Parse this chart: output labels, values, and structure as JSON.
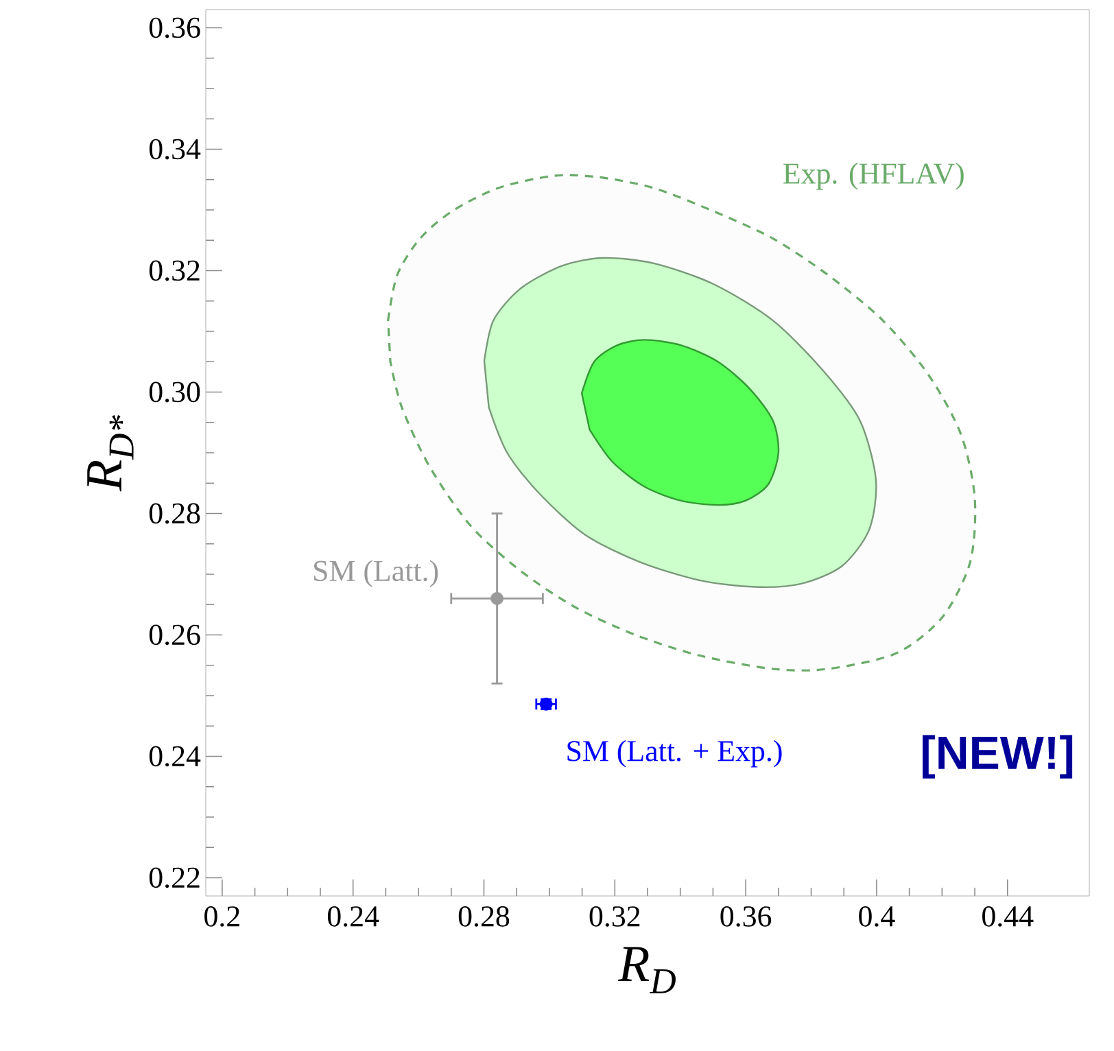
{
  "chart_data": {
    "type": "scatter",
    "xlabel": "R$_{D}$",
    "ylabel": "R$_{D*}$",
    "xlim": [
      0.195,
      0.465
    ],
    "ylim": [
      0.217,
      0.363
    ],
    "xticks": [
      0.2,
      0.24,
      0.28,
      0.32,
      0.36,
      0.4,
      0.44
    ],
    "yticks": [
      0.22,
      0.24,
      0.26,
      0.28,
      {
        "value": 0.3,
        "label": "0.30"
      },
      0.32,
      0.34,
      0.36
    ],
    "grid": false,
    "annotations": [
      "[NEW!]"
    ],
    "series": [
      {
        "name": "Exp. (HFLAV)",
        "type": "area",
        "line_style": "dashed",
        "marker": "none",
        "color": "#6aab6a",
        "x": [
          0.2507,
          0.2535,
          0.2605,
          0.2703,
          0.2843,
          0.3011,
          0.3151,
          0.3319,
          0.3501,
          0.3683,
          0.3851,
          0.4019,
          0.4159,
          0.4258,
          0.43,
          0.4286,
          0.4202,
          0.4061,
          0.3851,
          0.3683,
          0.3459,
          0.3263,
          0.3081,
          0.2913,
          0.2759,
          0.2633,
          0.2549,
          0.2514
        ],
        "values": [
          0.3118,
          0.3193,
          0.3253,
          0.3298,
          0.3336,
          0.3356,
          0.3354,
          0.3336,
          0.3298,
          0.3253,
          0.3193,
          0.3118,
          0.3028,
          0.293,
          0.2825,
          0.272,
          0.263,
          0.257,
          0.2544,
          0.2544,
          0.2566,
          0.26,
          0.2645,
          0.2705,
          0.278,
          0.2878,
          0.2975,
          0.305
        ]
      },
      {
        "type": "area",
        "marker": "none",
        "color": "#ccffcc",
        "x": [
          0.2801,
          0.2829,
          0.2913,
          0.3039,
          0.3165,
          0.3319,
          0.3501,
          0.3683,
          0.3837,
          0.3949,
          0.3998,
          0.3977,
          0.3893,
          0.3767,
          0.3627,
          0.3459,
          0.3277,
          0.3109,
          0.2969,
          0.2871,
          0.2815
        ],
        "values": [
          0.3051,
          0.3118,
          0.3171,
          0.3208,
          0.3221,
          0.3212,
          0.3178,
          0.3118,
          0.3035,
          0.2953,
          0.2855,
          0.2773,
          0.2713,
          0.2684,
          0.2679,
          0.269,
          0.272,
          0.2765,
          0.2833,
          0.29,
          0.2975
        ]
      },
      {
        "type": "area",
        "marker": "none",
        "color": "#55ff55",
        "x": [
          0.3099,
          0.3137,
          0.3207,
          0.3291,
          0.3403,
          0.3515,
          0.3613,
          0.3683,
          0.37,
          0.3669,
          0.3599,
          0.3515,
          0.3403,
          0.3291,
          0.3193,
          0.3123
        ],
        "values": [
          0.2998,
          0.305,
          0.3077,
          0.3086,
          0.3077,
          0.305,
          0.3005,
          0.2953,
          0.29,
          0.2848,
          0.2821,
          0.2814,
          0.2821,
          0.2844,
          0.2885,
          0.2938
        ]
      },
      {
        "name": "SM (Latt.)",
        "marker": "circle",
        "color": "#999999",
        "x": [
          0.284
        ],
        "values": [
          0.266
        ],
        "errors": [
          0.014
        ],
        "xerrors": [
          0.014
        ]
      },
      {
        "name": "SM (Latt. + Exp.)",
        "marker": "circle",
        "color": "#0000ff",
        "x": [
          0.299
        ],
        "values": [
          0.2486
        ],
        "errors": [
          0.0008
        ],
        "xerrors": [
          0.003
        ]
      }
    ]
  }
}
